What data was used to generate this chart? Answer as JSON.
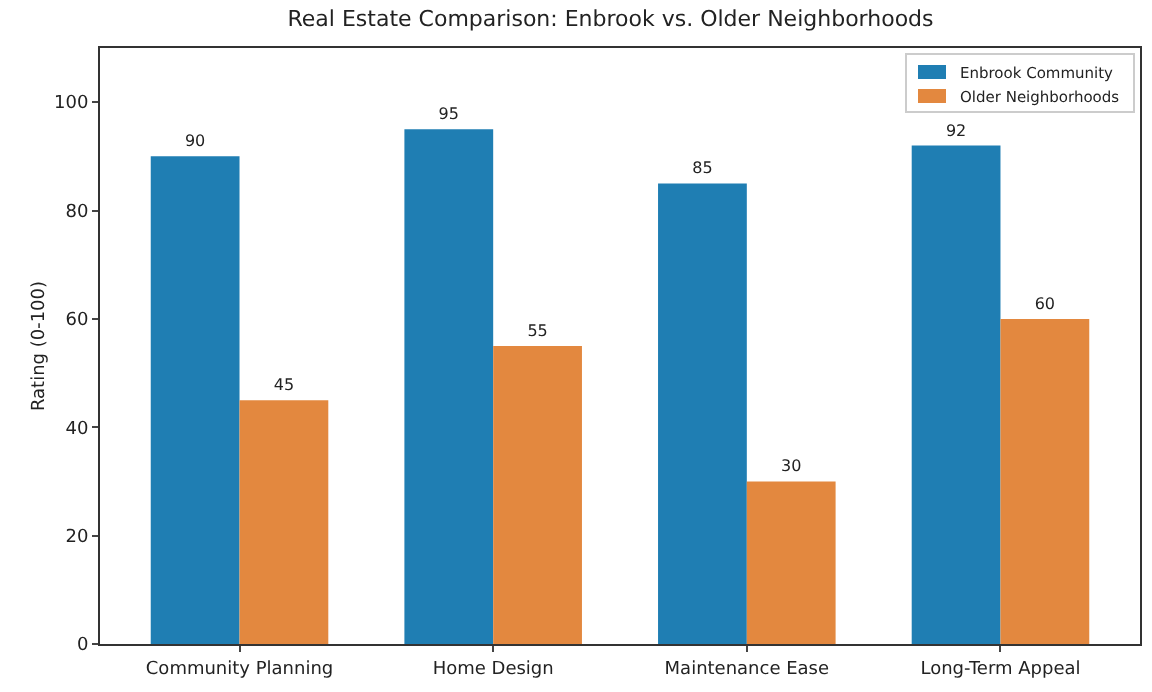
{
  "chart_data": {
    "type": "bar",
    "title": "Real Estate Comparison: Enbrook vs. Older Neighborhoods",
    "ylabel": "Rating (0-100)",
    "categories": [
      "Community Planning",
      "Home Design",
      "Maintenance Ease",
      "Long-Term Appeal"
    ],
    "series": [
      {
        "name": "Enbrook Community",
        "color": "#1f7eb3",
        "values": [
          90,
          95,
          85,
          92
        ]
      },
      {
        "name": "Older Neighborhoods",
        "color": "#e3883f",
        "values": [
          45,
          55,
          30,
          60
        ]
      }
    ],
    "ylim": [
      0,
      110
    ],
    "yticks": [
      0,
      20,
      40,
      60,
      80,
      100
    ],
    "data_labels": true,
    "legend": "top right",
    "grid": false
  }
}
